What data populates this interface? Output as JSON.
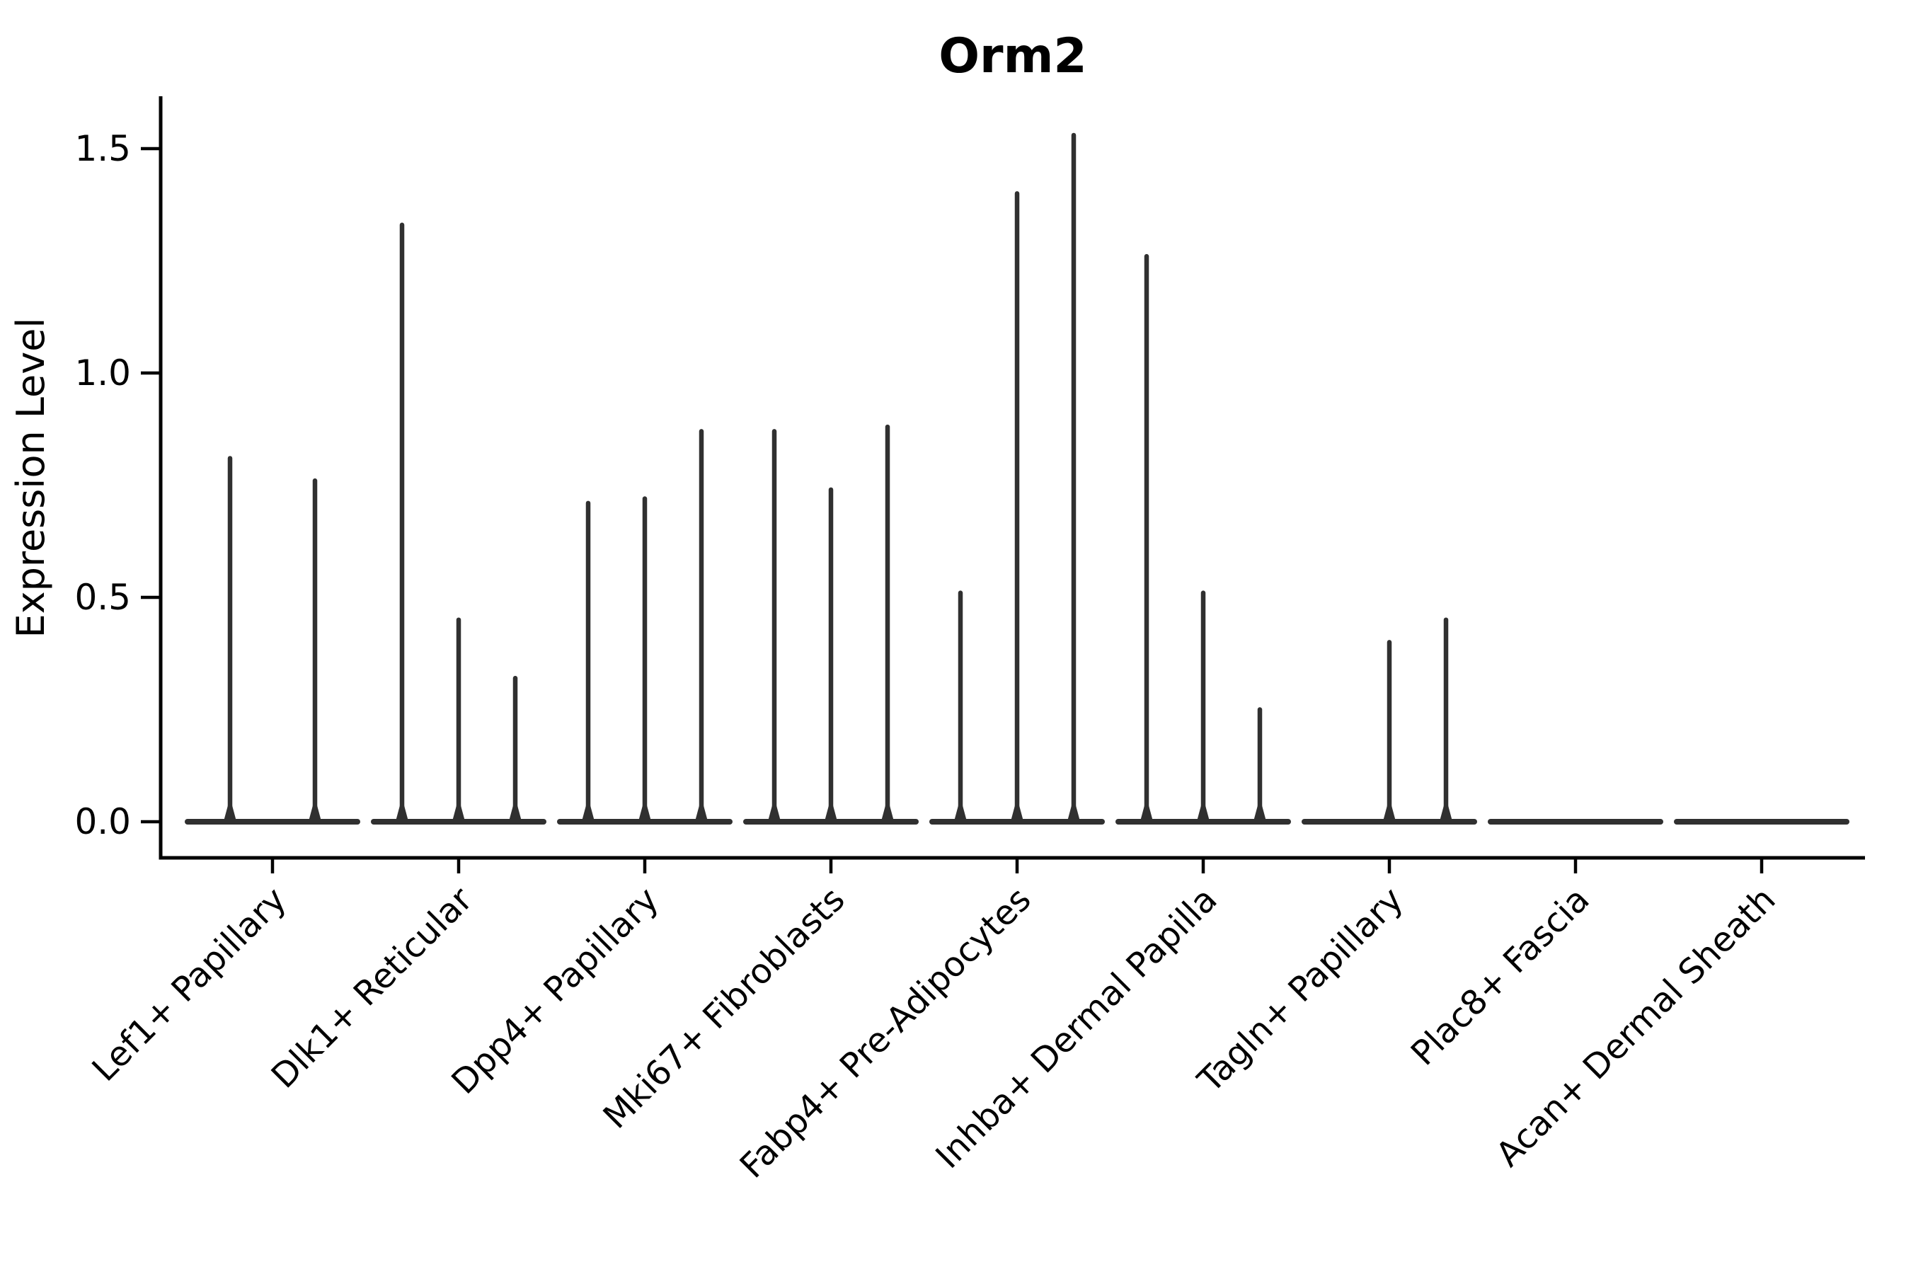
{
  "figure": {
    "title": "Orm2",
    "ylabel": "Expression Level"
  },
  "chart_data": {
    "type": "violin",
    "title": "Orm2",
    "subtitle": "",
    "xlabel": "",
    "ylabel": "Expression Level",
    "ylim": [
      0,
      1.62
    ],
    "grid": false,
    "legend": null,
    "yticks": [
      {
        "value": 0.0,
        "label": "0.0"
      },
      {
        "value": 0.5,
        "label": "0.5"
      },
      {
        "value": 1.0,
        "label": "1.0"
      },
      {
        "value": 1.5,
        "label": "1.5"
      }
    ],
    "categories": [
      "Lef1+ Papillary",
      "Dlk1+ Reticular",
      "Dpp4+ Papillary",
      "Mki67+ Fibroblasts",
      "Fabp4+ Pre-Adipocytes",
      "Inhba+ Dermal Papilla",
      "Tagln+ Papillary",
      "Plac8+ Fascia",
      "Acan+ Dermal Sheath"
    ],
    "violins": [
      {
        "category": "Lef1+ Papillary",
        "slots": 2,
        "spikes": [
          {
            "slot": 0,
            "value": 0.81
          },
          {
            "slot": 1,
            "value": 0.76
          }
        ]
      },
      {
        "category": "Dlk1+ Reticular",
        "slots": 3,
        "spikes": [
          {
            "slot": 0,
            "value": 1.33
          },
          {
            "slot": 1,
            "value": 0.45
          },
          {
            "slot": 2,
            "value": 0.32
          }
        ]
      },
      {
        "category": "Dpp4+ Papillary",
        "slots": 3,
        "spikes": [
          {
            "slot": 0,
            "value": 0.71
          },
          {
            "slot": 1,
            "value": 0.72
          },
          {
            "slot": 2,
            "value": 0.87
          }
        ]
      },
      {
        "category": "Mki67+ Fibroblasts",
        "slots": 3,
        "spikes": [
          {
            "slot": 0,
            "value": 0.87
          },
          {
            "slot": 1,
            "value": 0.74
          },
          {
            "slot": 2,
            "value": 0.88
          }
        ]
      },
      {
        "category": "Fabp4+ Pre-Adipocytes",
        "slots": 3,
        "spikes": [
          {
            "slot": 0,
            "value": 0.51
          },
          {
            "slot": 1,
            "value": 1.4
          },
          {
            "slot": 2,
            "value": 1.53
          }
        ]
      },
      {
        "category": "Inhba+ Dermal Papilla",
        "slots": 3,
        "spikes": [
          {
            "slot": 0,
            "value": 1.26
          },
          {
            "slot": 1,
            "value": 0.51
          },
          {
            "slot": 2,
            "value": 0.25
          }
        ]
      },
      {
        "category": "Tagln+ Papillary",
        "slots": 3,
        "spikes": [
          {
            "slot": 1,
            "value": 0.4
          },
          {
            "slot": 2,
            "value": 0.45
          }
        ]
      },
      {
        "category": "Plac8+ Fascia",
        "slots": 3,
        "spikes": []
      },
      {
        "category": "Acan+ Dermal Sheath",
        "slots": 3,
        "spikes": []
      }
    ],
    "colors": {
      "violin": "#303030",
      "axis": "#000000",
      "text": "#000000",
      "background": "#ffffff"
    }
  }
}
